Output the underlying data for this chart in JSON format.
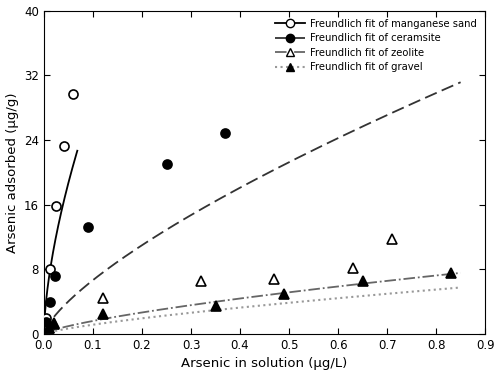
{
  "xlabel": "Arsenic in solution (μg/L)",
  "ylabel": "Arsenic adsorbed (μg/g)",
  "xlim": [
    0,
    0.9
  ],
  "ylim": [
    0,
    40
  ],
  "xticks": [
    0,
    0.1,
    0.2,
    0.3,
    0.4,
    0.5,
    0.6,
    0.7,
    0.8,
    0.9
  ],
  "yticks": [
    0,
    8,
    16,
    24,
    32,
    40
  ],
  "manganese_sand_data_x": [
    0.005,
    0.013,
    0.025,
    0.04,
    0.06
  ],
  "manganese_sand_data_y": [
    2.0,
    8.1,
    15.8,
    23.2,
    29.7
  ],
  "manganese_sand_kf": 120.0,
  "manganese_sand_n": 0.62,
  "ceramsite_data_x": [
    0.005,
    0.012,
    0.022,
    0.09,
    0.25,
    0.37
  ],
  "ceramsite_data_y": [
    1.5,
    4.0,
    7.2,
    13.2,
    21.0,
    24.8
  ],
  "ceramsite_kf": 35.0,
  "ceramsite_n": 0.72,
  "zeolite_data_x": [
    0.01,
    0.02,
    0.12,
    0.32,
    0.47,
    0.63,
    0.71
  ],
  "zeolite_data_y": [
    0.8,
    1.4,
    4.5,
    6.5,
    6.8,
    8.2,
    11.8
  ],
  "zeolite_kf": 8.5,
  "zeolite_n": 0.72,
  "gravel_data_x": [
    0.01,
    0.02,
    0.12,
    0.35,
    0.49,
    0.65,
    0.83
  ],
  "gravel_data_y": [
    0.7,
    1.2,
    2.5,
    3.5,
    5.0,
    6.6,
    7.5
  ],
  "gravel_kf": 6.5,
  "gravel_n": 0.75,
  "legend_labels": [
    "Freundlich fit of manganese sand",
    "Freundlich fit of ceramsite",
    "Freundlich fit of zeolite",
    "Freundlich fit of gravel"
  ]
}
